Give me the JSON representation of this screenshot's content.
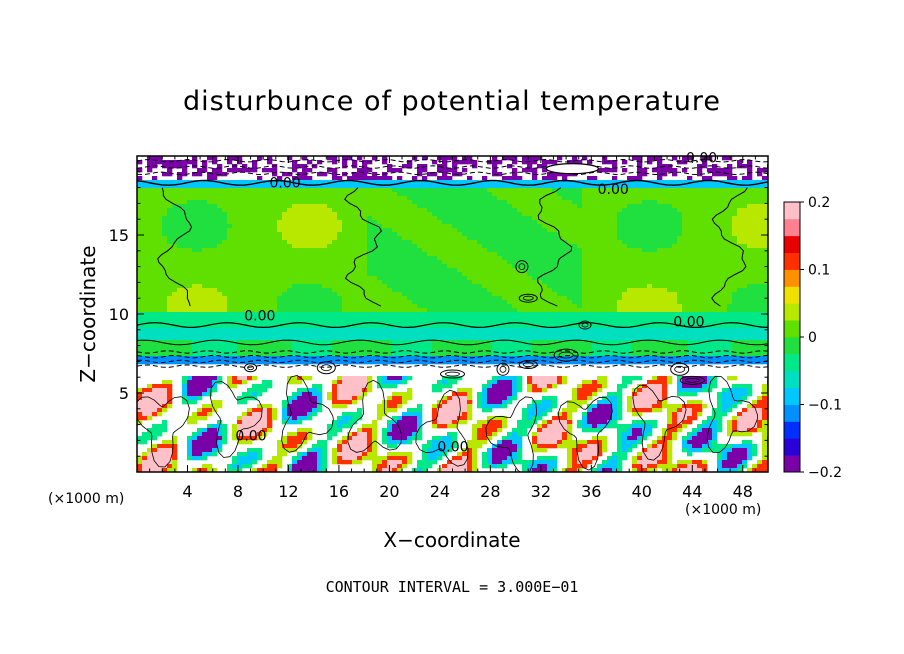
{
  "chart_data": {
    "type": "heatmap",
    "title": "disturbunce of potential temperature",
    "xlabel": "X−coordinate",
    "ylabel": "Z−coordinate",
    "x_unit": "(×1000 m)",
    "y_unit": "(×1000 m)",
    "xlim": [
      0,
      50
    ],
    "ylim": [
      0,
      20
    ],
    "x_ticks": [
      4,
      8,
      12,
      16,
      20,
      24,
      28,
      32,
      36,
      40,
      44,
      48
    ],
    "y_ticks": [
      5,
      10,
      15
    ],
    "colorbar": {
      "range": [
        -0.2,
        0.2
      ],
      "tick_values": [
        0.2,
        0.1,
        0,
        -0.1,
        -0.2
      ],
      "tick_labels": [
        "0.2",
        "0.1",
        "0",
        "−0.1",
        "−0.2"
      ],
      "colors": [
        "#7a00a8",
        "#2a00d8",
        "#0030ff",
        "#0090ff",
        "#00c8ff",
        "#00e0c0",
        "#00e888",
        "#20e040",
        "#60e000",
        "#b8e800",
        "#f0e000",
        "#ff9000",
        "#ff3000",
        "#e80000",
        "#ff8090",
        "#ffc0c8"
      ]
    },
    "contour_labels": [
      "0.00",
      "0.00",
      "0.00",
      "0.00",
      "0.00",
      "0.00",
      "0.00"
    ],
    "contour_interval_text": "CONTOUR INTERVAL = 3.000E−01",
    "field_levels": [
      {
        "z_range": [
          0,
          7
        ],
        "value": "turbulent, mixed ±0.2"
      },
      {
        "z_range": [
          7,
          10
        ],
        "value": -0.04
      },
      {
        "z_range": [
          10,
          18.5
        ],
        "value": 0.01
      },
      {
        "z_range": [
          18.5,
          20
        ],
        "value": -0.2
      }
    ]
  }
}
